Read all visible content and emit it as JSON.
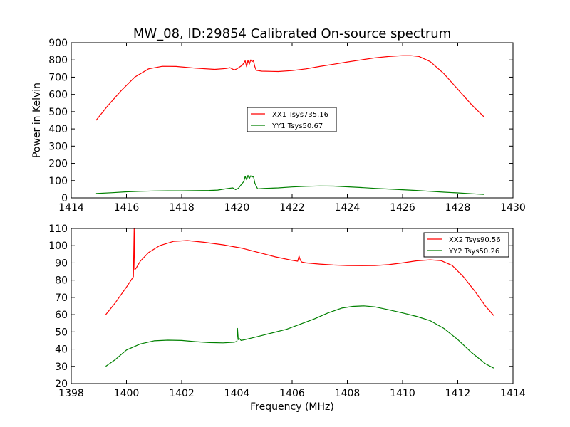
{
  "chart_data": [
    {
      "type": "line",
      "title": "MW_08, ID:29854 Calibrated On-source spectrum",
      "xlabel": "",
      "ylabel": "Power in Kelvin",
      "xlim": [
        1414,
        1430
      ],
      "ylim": [
        0,
        900
      ],
      "xticks": [
        "1414",
        "1416",
        "1418",
        "1420",
        "1422",
        "1424",
        "1426",
        "1428",
        "1430"
      ],
      "yticks": [
        "0",
        "100",
        "200",
        "300",
        "400",
        "500",
        "600",
        "700",
        "800",
        "900"
      ],
      "grid": false,
      "legend_position": "center",
      "series": [
        {
          "name": "XX1 Tsys735.16",
          "color": "#ff0000",
          "x": [
            1414.9,
            1415.3,
            1415.8,
            1416.3,
            1416.8,
            1417.3,
            1417.8,
            1418.5,
            1419.2,
            1419.6,
            1419.75,
            1419.9,
            1420.0,
            1420.2,
            1420.3,
            1420.35,
            1420.4,
            1420.45,
            1420.5,
            1420.55,
            1420.6,
            1420.65,
            1420.7,
            1420.9,
            1421.5,
            1422.0,
            1422.5,
            1423.0,
            1423.5,
            1424.0,
            1424.5,
            1425.0,
            1425.5,
            1426.0,
            1426.3,
            1426.6,
            1427.0,
            1427.5,
            1428.0,
            1428.5,
            1428.95
          ],
          "y": [
            450,
            530,
            620,
            700,
            748,
            763,
            762,
            752,
            745,
            750,
            755,
            742,
            748,
            770,
            795,
            760,
            798,
            775,
            800,
            790,
            795,
            760,
            740,
            735,
            733,
            738,
            748,
            762,
            775,
            788,
            800,
            812,
            820,
            825,
            825,
            820,
            790,
            720,
            630,
            540,
            470
          ]
        },
        {
          "name": "YY1 Tsys50.67",
          "color": "#008000",
          "x": [
            1414.9,
            1415.5,
            1416.0,
            1416.5,
            1417.0,
            1417.5,
            1418.0,
            1418.5,
            1419.0,
            1419.3,
            1419.5,
            1419.7,
            1419.85,
            1419.95,
            1420.05,
            1420.15,
            1420.25,
            1420.3,
            1420.35,
            1420.4,
            1420.45,
            1420.5,
            1420.55,
            1420.6,
            1420.65,
            1420.75,
            1421.0,
            1421.5,
            1422.0,
            1422.5,
            1423.0,
            1423.5,
            1424.0,
            1424.5,
            1425.0,
            1425.5,
            1426.0,
            1426.5,
            1427.0,
            1427.5,
            1428.0,
            1428.5,
            1428.95
          ],
          "y": [
            25,
            30,
            35,
            38,
            40,
            41,
            41,
            42,
            43,
            45,
            50,
            55,
            58,
            48,
            55,
            75,
            95,
            125,
            105,
            130,
            112,
            128,
            120,
            125,
            85,
            52,
            55,
            58,
            63,
            67,
            69,
            68,
            64,
            60,
            55,
            51,
            47,
            43,
            38,
            33,
            29,
            24,
            20
          ]
        }
      ]
    },
    {
      "type": "line",
      "title": "",
      "xlabel": "Frequency (MHz)",
      "ylabel": "",
      "xlim": [
        1398,
        1414
      ],
      "ylim": [
        20,
        110
      ],
      "xticks": [
        "1398",
        "1400",
        "1402",
        "1404",
        "1406",
        "1408",
        "1410",
        "1412",
        "1414"
      ],
      "yticks": [
        "20",
        "30",
        "40",
        "50",
        "60",
        "70",
        "80",
        "90",
        "100",
        "110"
      ],
      "grid": false,
      "legend_position": "top-right",
      "series": [
        {
          "name": "XX2 Tsys90.56",
          "color": "#ff0000",
          "x": [
            1399.25,
            1399.6,
            1400.0,
            1400.25,
            1400.28,
            1400.3,
            1400.35,
            1400.5,
            1400.8,
            1401.2,
            1401.7,
            1402.2,
            1402.8,
            1403.5,
            1404.2,
            1404.8,
            1405.4,
            1406.0,
            1406.2,
            1406.25,
            1406.3,
            1406.35,
            1406.5,
            1407.0,
            1407.5,
            1408.0,
            1408.5,
            1409.0,
            1409.5,
            1410.0,
            1410.5,
            1411.0,
            1411.4,
            1411.8,
            1412.2,
            1412.6,
            1413.0,
            1413.3
          ],
          "y": [
            60,
            67,
            76,
            82,
            110,
            86,
            87,
            91,
            96,
            100,
            102.5,
            103,
            102,
            100.5,
            98.5,
            96,
            93.5,
            91.5,
            91,
            94,
            91.5,
            90.5,
            90,
            89.3,
            88.8,
            88.5,
            88.4,
            88.5,
            89,
            90,
            91.2,
            91.8,
            91.3,
            88.5,
            82,
            74,
            65,
            59.5
          ]
        },
        {
          "name": "YY2 Tsys50.26",
          "color": "#008000",
          "x": [
            1399.25,
            1399.6,
            1400.0,
            1400.5,
            1401.0,
            1401.5,
            1402.0,
            1402.5,
            1403.0,
            1403.5,
            1403.9,
            1404.0,
            1404.02,
            1404.05,
            1404.1,
            1404.15,
            1404.3,
            1404.8,
            1405.3,
            1405.8,
            1406.3,
            1406.8,
            1407.3,
            1407.8,
            1408.2,
            1408.6,
            1409.0,
            1409.5,
            1410.0,
            1410.5,
            1411.0,
            1411.5,
            1412.0,
            1412.5,
            1413.0,
            1413.3
          ],
          "y": [
            30,
            34,
            39.5,
            43,
            44.8,
            45.2,
            45,
            44.3,
            43.8,
            43.6,
            44,
            44.5,
            52,
            45.5,
            46,
            45,
            45.5,
            47.5,
            49.5,
            51.5,
            54.5,
            57.5,
            61,
            63.8,
            64.8,
            65.1,
            64.5,
            62.8,
            61,
            59,
            56.5,
            52,
            45.5,
            38,
            31.5,
            29
          ]
        }
      ]
    }
  ]
}
